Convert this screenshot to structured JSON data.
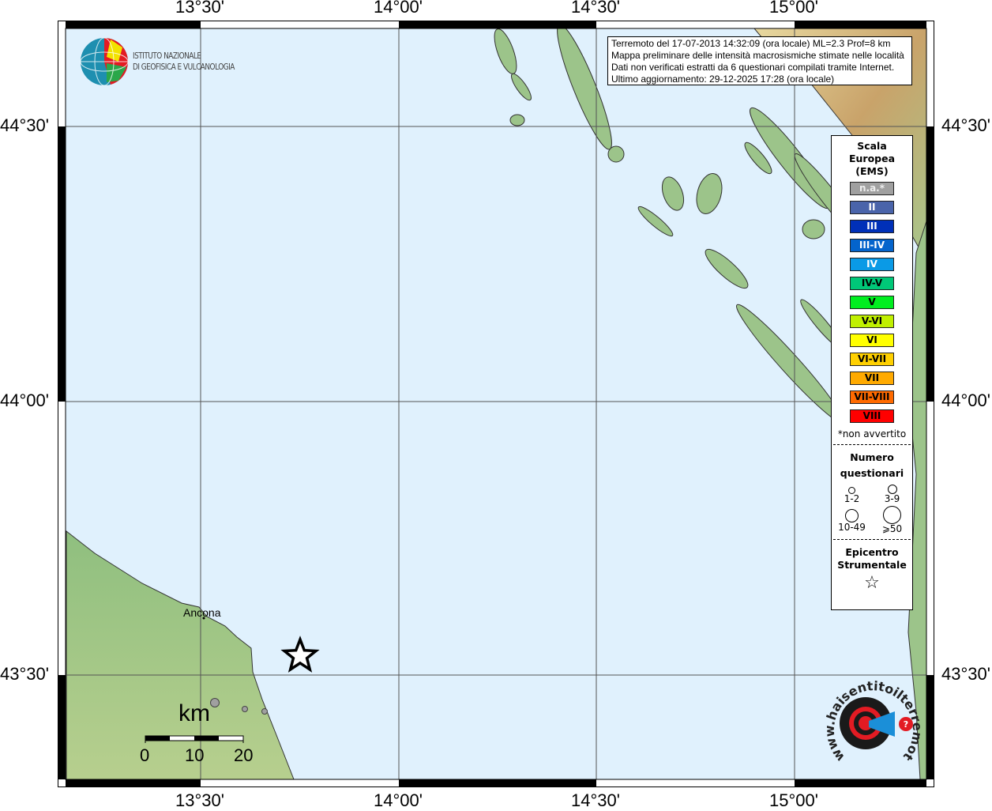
{
  "map": {
    "lon_ticks": [
      "13°30'",
      "14°00'",
      "14°30'",
      "15°00'"
    ],
    "lat_ticks": [
      "44°30'",
      "44°00'",
      "43°30'"
    ],
    "place_label": "Ancona",
    "colors": {
      "sea": "#e0f1fd",
      "land": "#9cc48a",
      "coast": "#333333"
    },
    "epicenter_icon": "star-icon",
    "stations": [
      {
        "place": "station-1",
        "questionnaires_class": "3-9"
      },
      {
        "place": "station-2",
        "questionnaires_class": "1-2"
      },
      {
        "place": "station-3",
        "questionnaires_class": "1-2"
      }
    ]
  },
  "logo": {
    "line1": "ISTITUTO NAZIONALE",
    "line2": "DI GEOFISICA E VULCANOLOGIA"
  },
  "info": {
    "line1": "Terremoto del 17-07-2013 14:32:09 (ora locale) ML=2.3 Prof=8 km",
    "line2": "Mappa preliminare delle intensità macrosismiche stimate nelle località",
    "line3": "Dati non verificati estratti da 6 questionari compilati tramite Internet.",
    "line4": "Ultimo aggiornamento: 29-12-2025 17:28 (ora locale)"
  },
  "legend": {
    "title1": "Scala",
    "title2": "Europea",
    "title3": "(EMS)",
    "scale": [
      {
        "label": "n.a.*",
        "color": "#a0a0a0"
      },
      {
        "label": "II",
        "color": "#4a64aa"
      },
      {
        "label": "III",
        "color": "#0030b8"
      },
      {
        "label": "III-IV",
        "color": "#0464cc"
      },
      {
        "label": "IV",
        "color": "#0a9ae6"
      },
      {
        "label": "IV-V",
        "color": "#00c878"
      },
      {
        "label": "V",
        "color": "#00ee20"
      },
      {
        "label": "V-VI",
        "color": "#c0f000"
      },
      {
        "label": "VI",
        "color": "#ffff00"
      },
      {
        "label": "VI-VII",
        "color": "#ffd000"
      },
      {
        "label": "VII",
        "color": "#ffaa00"
      },
      {
        "label": "VII-VIII",
        "color": "#ff6a00"
      },
      {
        "label": "VIII",
        "color": "#ff0000"
      }
    ],
    "na_note": "*non avvertito",
    "q_title1": "Numero",
    "q_title2": "questionari",
    "q_classes": [
      "1-2",
      "3-9",
      "10-49",
      "⩾50"
    ],
    "epi_title1": "Epicentro",
    "epi_title2": "Strumentale",
    "epi_symbol": "☆"
  },
  "scalebar": {
    "unit": "km",
    "labels": [
      "0",
      "10",
      "20"
    ]
  },
  "haisentito": {
    "text": "www.haisentitoilterremoto.it"
  }
}
